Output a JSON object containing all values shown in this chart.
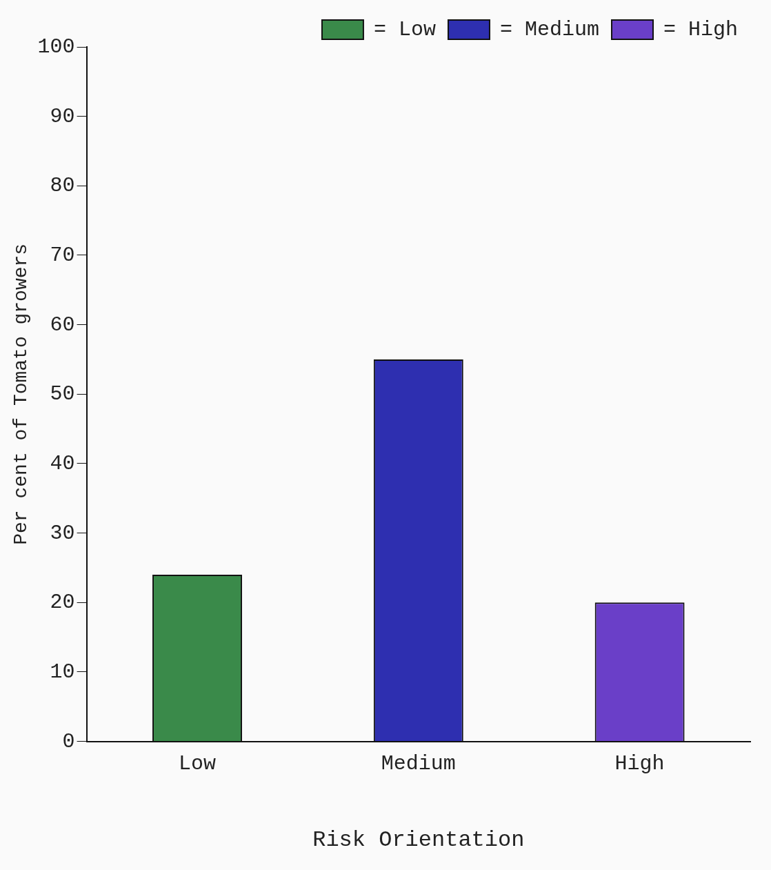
{
  "chart_data": {
    "type": "bar",
    "xlabel": "Risk Orientation",
    "ylabel": "Per cent of Tomato growers",
    "categories": [
      "Low",
      "Medium",
      "High"
    ],
    "series": [
      {
        "name": "= Low",
        "color": "#3a8a4a",
        "values": [
          24,
          null,
          null
        ]
      },
      {
        "name": "= Medium",
        "color": "#2e2fb0",
        "values": [
          null,
          55,
          null
        ]
      },
      {
        "name": "= High",
        "color": "#6a3fc8",
        "values": [
          null,
          null,
          20
        ]
      }
    ],
    "ylim": [
      0,
      100
    ],
    "yticks": [
      0,
      10,
      20,
      30,
      40,
      50,
      60,
      70,
      80,
      90,
      100
    ],
    "legend": "top right",
    "grid": false
  }
}
